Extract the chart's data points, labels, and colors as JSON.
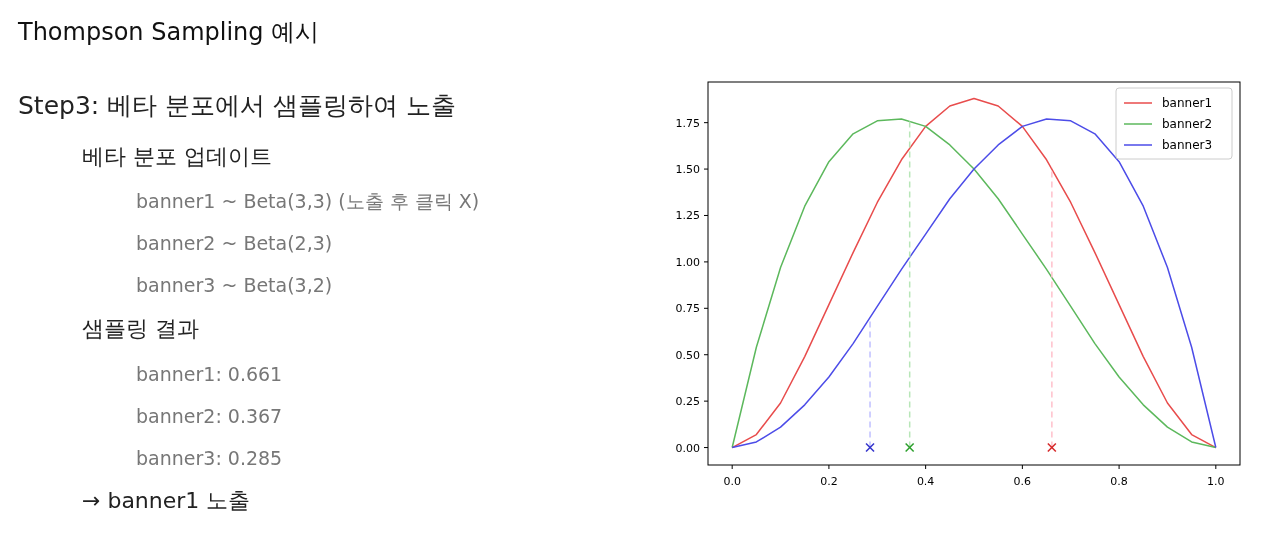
{
  "chart_data": {
    "type": "line",
    "title": "Thompson Sampling 예시",
    "subtitle": "Step3: 베타 분포에서 샘플링하여 노출",
    "annotations": [
      "베타 분포 업데이트",
      "banner1 ~ Beta(3,3) (노출 후 클릭 X)",
      "banner2 ~ Beta(2,3)",
      "banner3 ~ Beta(3,2)",
      "샘플링 결과",
      "banner1: 0.661",
      "banner2: 0.367",
      "banner3: 0.285",
      "→ banner1 노출"
    ],
    "x": [
      0,
      0.05,
      0.1,
      0.15,
      0.2,
      0.25,
      0.3,
      0.35,
      0.4,
      0.45,
      0.5,
      0.55,
      0.6,
      0.65,
      0.7,
      0.75,
      0.8,
      0.85,
      0.9,
      0.95,
      1
    ],
    "series": [
      {
        "name": "banner1",
        "color": "#e84c4c",
        "values": [
          0,
          0.07,
          0.24,
          0.49,
          0.77,
          1.05,
          1.32,
          1.55,
          1.73,
          1.84,
          1.88,
          1.84,
          1.73,
          1.55,
          1.32,
          1.05,
          0.77,
          0.49,
          0.24,
          0.07,
          0
        ]
      },
      {
        "name": "banner2",
        "color": "#5cb85c",
        "values": [
          0,
          0.54,
          0.97,
          1.3,
          1.54,
          1.69,
          1.76,
          1.77,
          1.73,
          1.63,
          1.5,
          1.34,
          1.15,
          0.96,
          0.76,
          0.56,
          0.38,
          0.23,
          0.11,
          0.03,
          0
        ]
      },
      {
        "name": "banner3",
        "color": "#4c4ce8",
        "values": [
          0,
          0.03,
          0.11,
          0.23,
          0.38,
          0.56,
          0.76,
          0.96,
          1.15,
          1.34,
          1.5,
          1.63,
          1.73,
          1.77,
          1.76,
          1.69,
          1.54,
          1.3,
          0.97,
          0.54,
          0
        ]
      },
      {
        "type": "line",
        "line_style": "dashed",
        "color": "#ffc0cb",
        "x": [
          0.661,
          0.661
        ],
        "values": [
          0,
          1.51
        ]
      },
      {
        "type": "line",
        "line_style": "dashed",
        "color": "#b8e6b8",
        "x": [
          0.367,
          0.367
        ],
        "values": [
          0,
          1.77
        ]
      },
      {
        "type": "line",
        "line_style": "dashed",
        "color": "#c0c0ff",
        "x": [
          0.285,
          0.285
        ],
        "values": [
          0,
          0.7
        ]
      },
      {
        "type": "scatter",
        "marker": "cross",
        "color": "#d62728",
        "x": [
          0.661
        ],
        "values": [
          0
        ]
      },
      {
        "type": "scatter",
        "marker": "cross",
        "color": "#2ca02c",
        "x": [
          0.367
        ],
        "values": [
          0
        ]
      },
      {
        "type": "scatter",
        "marker": "cross",
        "color": "#3333cc",
        "x": [
          0.285
        ],
        "values": [
          0
        ]
      }
    ],
    "xlim": [
      -0.05,
      1.05
    ],
    "ylim": [
      -0.094,
      1.969
    ],
    "xticks": [
      {
        "value": 0,
        "label": "0.0"
      },
      {
        "value": 0.2,
        "label": "0.2"
      },
      {
        "value": 0.4,
        "label": "0.4"
      },
      {
        "value": 0.6,
        "label": "0.6"
      },
      {
        "value": 0.8,
        "label": "0.8"
      },
      {
        "value": 1,
        "label": "1.0"
      }
    ],
    "yticks": [
      {
        "value": 0,
        "label": "0.00"
      },
      {
        "value": 0.25,
        "label": "0.25"
      },
      {
        "value": 0.5,
        "label": "0.50"
      },
      {
        "value": 0.75,
        "label": "0.75"
      },
      {
        "value": 1,
        "label": "1.00"
      },
      {
        "value": 1.25,
        "label": "1.25"
      },
      {
        "value": 1.5,
        "label": "1.50"
      },
      {
        "value": 1.75,
        "label": "1.75"
      }
    ],
    "grid": false,
    "legend": "top right"
  }
}
